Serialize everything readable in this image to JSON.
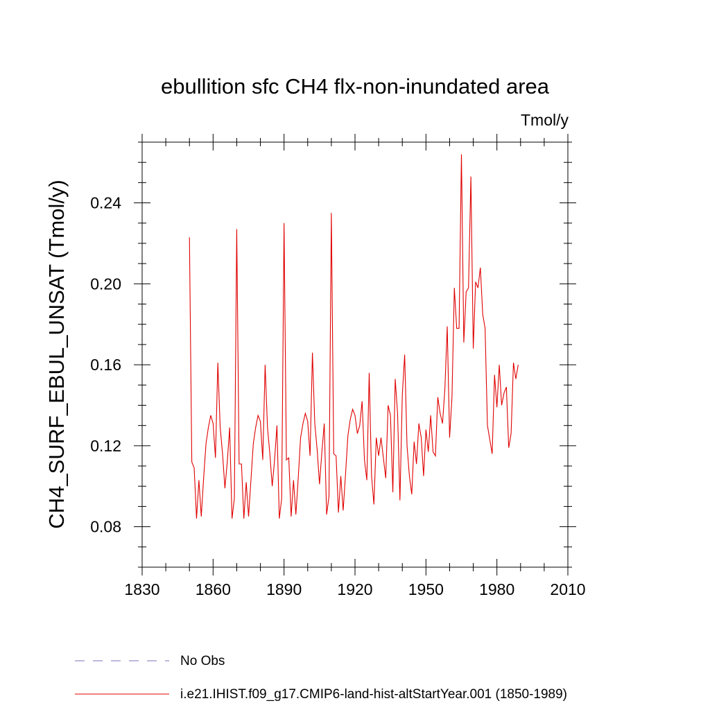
{
  "chart_data": {
    "type": "line",
    "title": "ebullition sfc CH4 flx-non-inundated area",
    "units_label": "Tmol/y",
    "ylabel": "CH4_SURF_EBUL_UNSAT  (Tmol/y)",
    "xlabel": "",
    "xlim": [
      1830,
      2010
    ],
    "ylim": [
      0.06,
      0.27
    ],
    "xticks": [
      1830,
      1860,
      1890,
      1920,
      1950,
      1980,
      2010
    ],
    "xtick_labels": [
      "1830",
      "1860",
      "1890",
      "1920",
      "1950",
      "1980",
      "2010"
    ],
    "yticks": [
      0.08,
      0.12,
      0.16,
      0.2,
      0.24
    ],
    "ytick_labels": [
      "0.08",
      "0.12",
      "0.16",
      "0.20",
      "0.24"
    ],
    "grid": false,
    "legend_position": "bottom",
    "series": [
      {
        "name": "i.e21.IHIST.f09_g17.CMIP6-land-hist-altStartYear.001 (1850-1989)",
        "color": "#e00000",
        "style": "solid",
        "x": [
          1850,
          1851,
          1852,
          1853,
          1854,
          1855,
          1856,
          1857,
          1858,
          1859,
          1860,
          1861,
          1862,
          1863,
          1864,
          1865,
          1866,
          1867,
          1868,
          1869,
          1870,
          1871,
          1872,
          1873,
          1874,
          1875,
          1876,
          1877,
          1878,
          1879,
          1880,
          1881,
          1882,
          1883,
          1884,
          1885,
          1886,
          1887,
          1888,
          1889,
          1890,
          1891,
          1892,
          1893,
          1894,
          1895,
          1896,
          1897,
          1898,
          1899,
          1900,
          1901,
          1902,
          1903,
          1904,
          1905,
          1906,
          1907,
          1908,
          1909,
          1910,
          1911,
          1912,
          1913,
          1914,
          1915,
          1916,
          1917,
          1918,
          1919,
          1920,
          1921,
          1922,
          1923,
          1924,
          1925,
          1926,
          1927,
          1928,
          1929,
          1930,
          1931,
          1932,
          1933,
          1934,
          1935,
          1936,
          1937,
          1938,
          1939,
          1940,
          1941,
          1942,
          1943,
          1944,
          1945,
          1946,
          1947,
          1948,
          1949,
          1950,
          1951,
          1952,
          1953,
          1954,
          1955,
          1956,
          1957,
          1958,
          1959,
          1960,
          1961,
          1962,
          1963,
          1964,
          1965,
          1966,
          1967,
          1968,
          1969,
          1970,
          1971,
          1972,
          1973,
          1974,
          1975,
          1976,
          1977,
          1978,
          1979,
          1980,
          1981,
          1982,
          1983,
          1984,
          1985,
          1986,
          1987,
          1988,
          1989
        ],
        "y": [
          0.223,
          0.112,
          0.109,
          0.084,
          0.103,
          0.085,
          0.104,
          0.121,
          0.129,
          0.135,
          0.131,
          0.114,
          0.161,
          0.129,
          0.116,
          0.099,
          0.112,
          0.129,
          0.084,
          0.094,
          0.227,
          0.111,
          0.111,
          0.084,
          0.102,
          0.085,
          0.103,
          0.121,
          0.129,
          0.135,
          0.132,
          0.113,
          0.16,
          0.129,
          0.116,
          0.1,
          0.113,
          0.13,
          0.084,
          0.094,
          0.23,
          0.113,
          0.114,
          0.085,
          0.103,
          0.086,
          0.104,
          0.124,
          0.131,
          0.136,
          0.132,
          0.115,
          0.166,
          0.131,
          0.118,
          0.101,
          0.117,
          0.131,
          0.086,
          0.095,
          0.235,
          0.116,
          0.115,
          0.087,
          0.105,
          0.088,
          0.106,
          0.125,
          0.133,
          0.138,
          0.135,
          0.126,
          0.13,
          0.142,
          0.113,
          0.103,
          0.156,
          0.105,
          0.091,
          0.124,
          0.115,
          0.124,
          0.114,
          0.104,
          0.14,
          0.135,
          0.097,
          0.153,
          0.136,
          0.093,
          0.145,
          0.165,
          0.12,
          0.105,
          0.096,
          0.122,
          0.111,
          0.131,
          0.124,
          0.105,
          0.128,
          0.117,
          0.135,
          0.117,
          0.115,
          0.144,
          0.136,
          0.131,
          0.148,
          0.179,
          0.124,
          0.144,
          0.198,
          0.178,
          0.178,
          0.264,
          0.171,
          0.196,
          0.198,
          0.253,
          0.168,
          0.201,
          0.198,
          0.208,
          0.185,
          0.178,
          0.13,
          0.123,
          0.116,
          0.155,
          0.139,
          0.16,
          0.14,
          0.146,
          0.149,
          0.119,
          0.126,
          0.161,
          0.153,
          0.16
        ]
      }
    ],
    "legend": [
      {
        "label": "No Obs",
        "color": "#7b6fb8",
        "style": "dashed"
      },
      {
        "label": "i.e21.IHIST.f09_g17.CMIP6-land-hist-altStartYear.001 (1850-1989)",
        "color": "#e00000",
        "style": "solid"
      }
    ]
  }
}
